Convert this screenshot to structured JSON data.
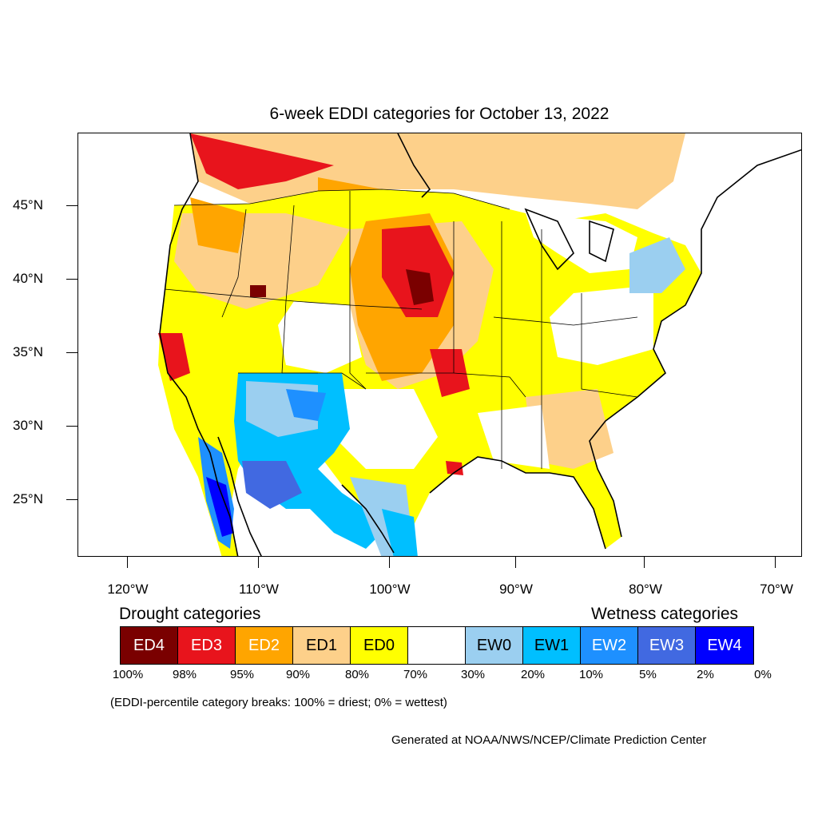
{
  "title": "6-week EDDI categories for October 13, 2022",
  "lat_labels": [
    "45°N",
    "40°N",
    "35°N",
    "30°N",
    "25°N"
  ],
  "lon_labels": [
    "120°W",
    "110°W",
    "100°W",
    "90°W",
    "80°W",
    "70°W"
  ],
  "drought_title": "Drought categories",
  "wetness_title": "Wetness categories",
  "legend": [
    {
      "label": "ED4",
      "color": "#7a0000",
      "text_color": "#ffffff"
    },
    {
      "label": "ED3",
      "color": "#e8141c",
      "text_color": "#ffffff"
    },
    {
      "label": "ED2",
      "color": "#ffa500",
      "text_color": "#ffffff"
    },
    {
      "label": "ED1",
      "color": "#fdd08a",
      "text_color": "#000000"
    },
    {
      "label": "ED0",
      "color": "#ffff00",
      "text_color": "#000000"
    },
    {
      "label": "",
      "color": "#ffffff",
      "text_color": "#000000"
    },
    {
      "label": "EW0",
      "color": "#9bcff0",
      "text_color": "#000000"
    },
    {
      "label": "EW1",
      "color": "#00bfff",
      "text_color": "#000000"
    },
    {
      "label": "EW2",
      "color": "#1e90ff",
      "text_color": "#ffffff"
    },
    {
      "label": "EW3",
      "color": "#4169e1",
      "text_color": "#ffffff"
    },
    {
      "label": "EW4",
      "color": "#0000ff",
      "text_color": "#ffffff"
    }
  ],
  "percent_labels": [
    "100%",
    "98%",
    "95%",
    "90%",
    "80%",
    "70%",
    "30%",
    "20%",
    "10%",
    "5%",
    "2%",
    "0%"
  ],
  "note": "(EDDI-percentile category breaks: 100% = driest; 0% = wettest)",
  "credit": "Generated at NOAA/NWS/NCEP/Climate Prediction Center"
}
